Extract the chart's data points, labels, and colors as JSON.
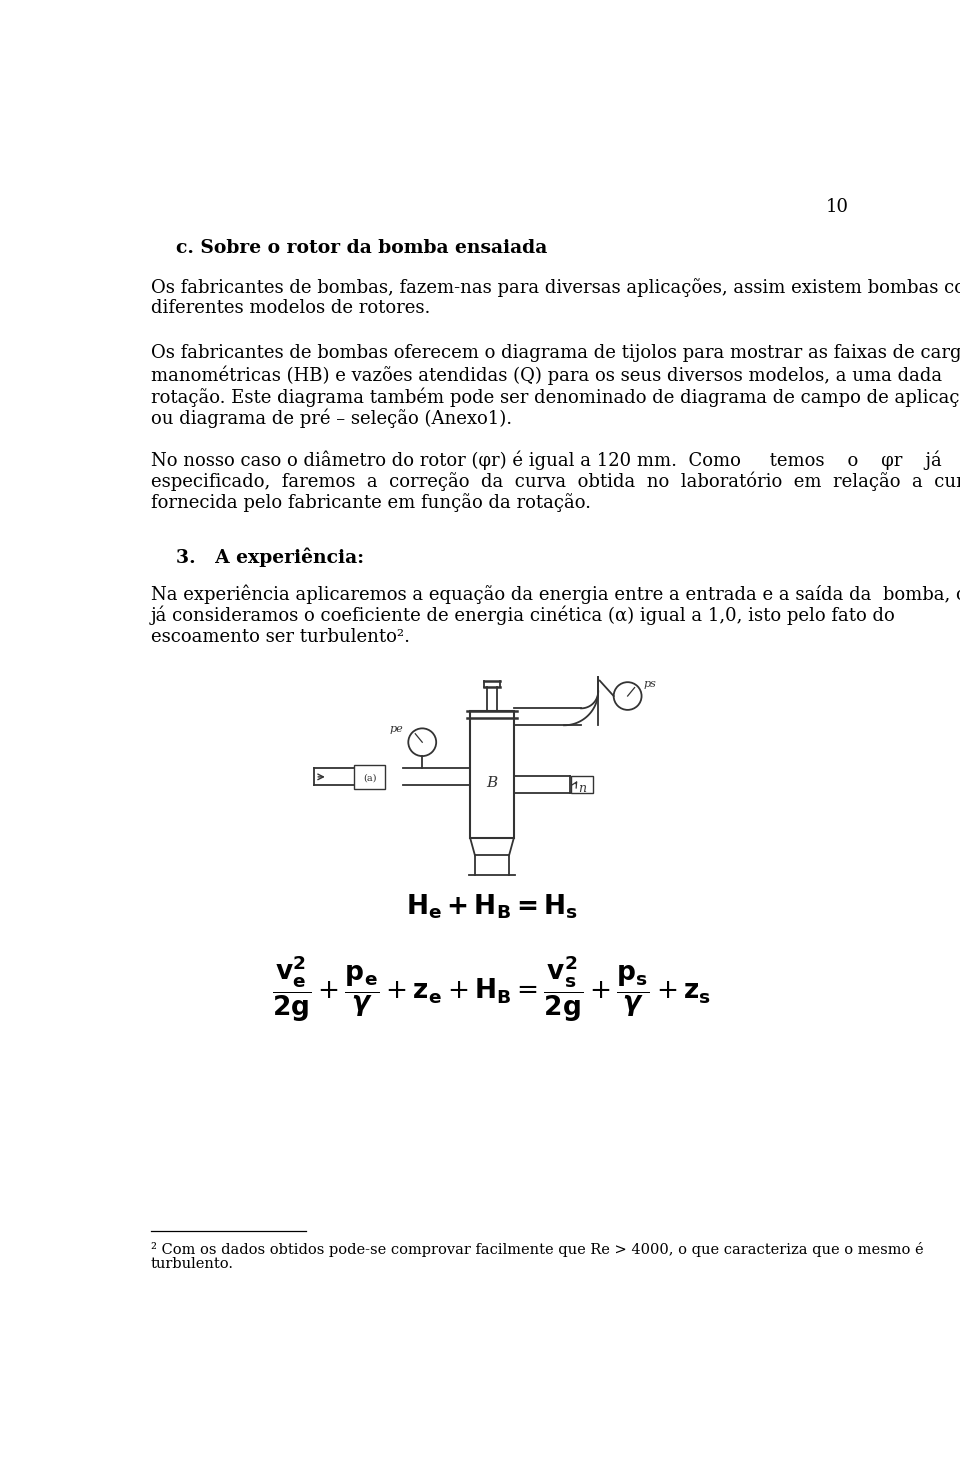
{
  "page_number": "10",
  "bg_color": "#ffffff",
  "text_color": "#000000",
  "section_c_title": "c. Sobre o rotor da bomba ensaiada",
  "para1_l1": "Os fabricantes de bombas, fazem-nas para diversas aplicações, assim existem bombas com",
  "para1_l2": "diferentes modelos de rotores.",
  "para2_l1": "Os fabricantes de bombas oferecem o diagrama de tijolos para mostrar as faixas de cargas",
  "para2_l2": "manométricas (HB) e vazões atendidas (Q) para os seus diversos modelos, a uma dada",
  "para2_l3": "rotação. Este diagrama também pode ser denominado de diagrama de campo de aplicação,",
  "para2_l4": "ou diagrama de pré – seleção (Anexo1).",
  "para3_l1": "No nosso caso o diâmetro do rotor (φr) é igual a 120 mm.  Como     temos    o    φr    já",
  "para3_l2": "especificado,  faremos  a  correção  da  curva  obtida  no  laboratório  em  relação  a  curva",
  "para3_l3": "fornecida pelo fabricante em função da rotação.",
  "section3_title": "3.   A experiência:",
  "para4_l1": "Na experiência aplicaremos a equação da energia entre a entrada e a saída da  bomba, onde",
  "para4_l2": "já consideramos o coeficiente de energia cinética (α) igual a 1,0, isto pelo fato do",
  "para4_l3": "escoamento ser turbulento².",
  "fn_line": "² Com os dados obtidos pode-se comprovar facilmente que Re > 4000, o que caracteriza que o mesmo é",
  "fn_line2": "turbulento.",
  "line_color": "#333333",
  "lw": 1.3
}
